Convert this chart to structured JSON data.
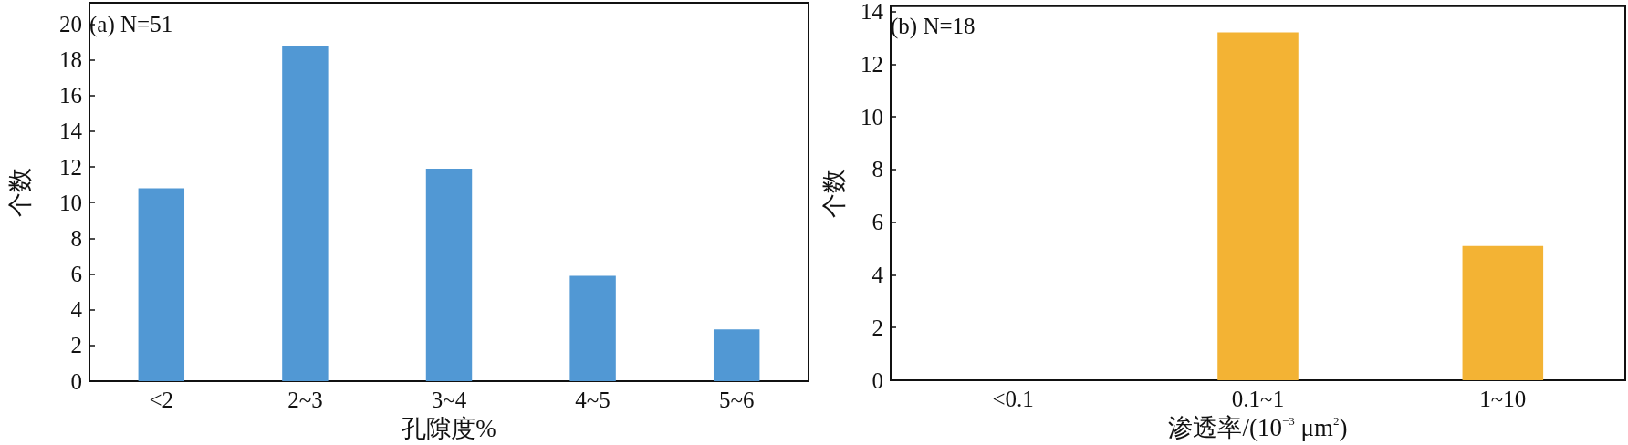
{
  "chart_data": [
    {
      "type": "bar",
      "title": "(a) N=51",
      "xlabel": "孔隙度%",
      "ylabel": "个数",
      "categories": [
        "<2",
        "2~3",
        "3~4",
        "4~5",
        "5~6"
      ],
      "values": [
        10.8,
        18.8,
        11.9,
        5.9,
        2.9
      ],
      "color": "#5198d4",
      "ylim": [
        0,
        21.2
      ],
      "yticks": [
        0,
        2,
        4,
        6,
        8,
        10,
        12,
        14,
        16,
        18,
        20
      ],
      "grid": false
    },
    {
      "type": "bar",
      "title": "(b) N=18",
      "xlabel": "渗透率/(10$^{−3}$ μm$^{2}$)",
      "ylabel": "个数",
      "categories": [
        "<0.1",
        "0.1~1",
        "1~10"
      ],
      "values": [
        0,
        13.2,
        5.1
      ],
      "color": "#f3b334",
      "ylim": [
        0,
        14.2
      ],
      "yticks": [
        0,
        2,
        4,
        6,
        8,
        10,
        12,
        14
      ],
      "grid": false
    }
  ]
}
